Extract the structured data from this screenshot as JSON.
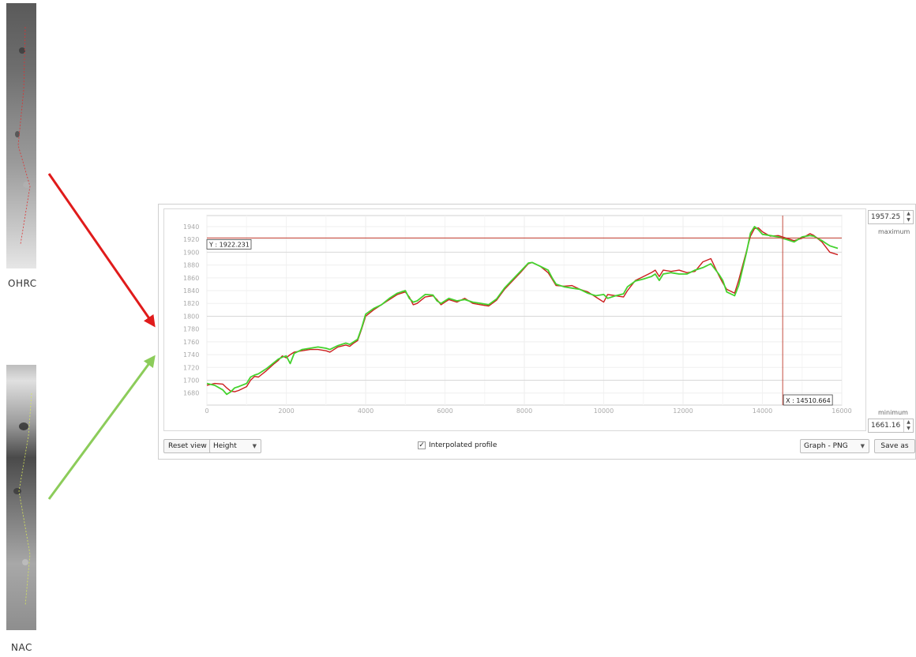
{
  "images": {
    "ohrc_label": "OHRC",
    "nac_label": "NAC"
  },
  "colors": {
    "ohrc": "#cc1e1e",
    "nac": "#44d22e",
    "crosshair": "#c0392b"
  },
  "profile": {
    "max_value": "1957.25",
    "max_label": "maximum",
    "min_value": "1661.16",
    "min_label": "minimum",
    "crosshair_y_label": "Y : 1922.231",
    "crosshair_x_label": "X : 14510.664",
    "crosshair_x": 14510.664,
    "crosshair_y": 1922.231,
    "reset_label": "Reset view",
    "mode_value": "Height",
    "interpolated_label": "Interpolated profile",
    "interpolated_checked": true,
    "export_value": "Graph - PNG",
    "save_label": "Save as"
  },
  "chart_data": {
    "type": "line",
    "xlim": [
      0,
      16000
    ],
    "ylim": [
      1661.16,
      1957.25
    ],
    "x_ticks": [
      "0",
      "2000",
      "4000",
      "6000",
      "8000",
      "10000",
      "12000",
      "14000",
      "16000"
    ],
    "y_ticks": [
      "1680",
      "1700",
      "1720",
      "1740",
      "1760",
      "1780",
      "1800",
      "1820",
      "1840",
      "1860",
      "1880",
      "1900",
      "1920",
      "1940"
    ],
    "grid": true,
    "series": [
      {
        "color": "#cc1e1e",
        "points": [
          [
            0,
            1692
          ],
          [
            200,
            1695
          ],
          [
            400,
            1694
          ],
          [
            500,
            1688
          ],
          [
            600,
            1683
          ],
          [
            700,
            1682
          ],
          [
            800,
            1684
          ],
          [
            1000,
            1690
          ],
          [
            1100,
            1700
          ],
          [
            1200,
            1706
          ],
          [
            1300,
            1705
          ],
          [
            1500,
            1715
          ],
          [
            1700,
            1726
          ],
          [
            1800,
            1731
          ],
          [
            1900,
            1738
          ],
          [
            2000,
            1735
          ],
          [
            2100,
            1740
          ],
          [
            2200,
            1744
          ],
          [
            2400,
            1746
          ],
          [
            2600,
            1748
          ],
          [
            2800,
            1748
          ],
          [
            3000,
            1746
          ],
          [
            3100,
            1744
          ],
          [
            3300,
            1752
          ],
          [
            3500,
            1755
          ],
          [
            3600,
            1753
          ],
          [
            3700,
            1758
          ],
          [
            3800,
            1762
          ],
          [
            3900,
            1780
          ],
          [
            4000,
            1800
          ],
          [
            4200,
            1810
          ],
          [
            4400,
            1818
          ],
          [
            4600,
            1826
          ],
          [
            4800,
            1834
          ],
          [
            5000,
            1838
          ],
          [
            5100,
            1830
          ],
          [
            5200,
            1818
          ],
          [
            5300,
            1820
          ],
          [
            5500,
            1830
          ],
          [
            5700,
            1832
          ],
          [
            5800,
            1826
          ],
          [
            5900,
            1818
          ],
          [
            6000,
            1822
          ],
          [
            6100,
            1826
          ],
          [
            6300,
            1822
          ],
          [
            6500,
            1828
          ],
          [
            6700,
            1820
          ],
          [
            6900,
            1818
          ],
          [
            7100,
            1816
          ],
          [
            7300,
            1825
          ],
          [
            7500,
            1842
          ],
          [
            7700,
            1855
          ],
          [
            7900,
            1868
          ],
          [
            8100,
            1882
          ],
          [
            8200,
            1884
          ],
          [
            8400,
            1878
          ],
          [
            8600,
            1868
          ],
          [
            8700,
            1858
          ],
          [
            8800,
            1848
          ],
          [
            9000,
            1847
          ],
          [
            9200,
            1848
          ],
          [
            9400,
            1842
          ],
          [
            9600,
            1838
          ],
          [
            9800,
            1830
          ],
          [
            10000,
            1822
          ],
          [
            10100,
            1834
          ],
          [
            10300,
            1832
          ],
          [
            10500,
            1830
          ],
          [
            10600,
            1840
          ],
          [
            10800,
            1856
          ],
          [
            11000,
            1862
          ],
          [
            11200,
            1868
          ],
          [
            11300,
            1872
          ],
          [
            11400,
            1862
          ],
          [
            11500,
            1872
          ],
          [
            11700,
            1870
          ],
          [
            11900,
            1872
          ],
          [
            12100,
            1868
          ],
          [
            12300,
            1870
          ],
          [
            12500,
            1885
          ],
          [
            12700,
            1890
          ],
          [
            12900,
            1864
          ],
          [
            13000,
            1852
          ],
          [
            13100,
            1842
          ],
          [
            13300,
            1836
          ],
          [
            13400,
            1856
          ],
          [
            13600,
            1902
          ],
          [
            13700,
            1925
          ],
          [
            13800,
            1937
          ],
          [
            13900,
            1938
          ],
          [
            14000,
            1932
          ],
          [
            14200,
            1925
          ],
          [
            14400,
            1926
          ],
          [
            14600,
            1922
          ],
          [
            14800,
            1918
          ],
          [
            15000,
            1922
          ],
          [
            15200,
            1929
          ],
          [
            15300,
            1926
          ],
          [
            15500,
            1916
          ],
          [
            15600,
            1908
          ],
          [
            15700,
            1900
          ],
          [
            15900,
            1896
          ]
        ]
      },
      {
        "color": "#44d22e",
        "points": [
          [
            0,
            1695
          ],
          [
            200,
            1692
          ],
          [
            400,
            1685
          ],
          [
            500,
            1678
          ],
          [
            600,
            1682
          ],
          [
            700,
            1688
          ],
          [
            800,
            1690
          ],
          [
            1000,
            1695
          ],
          [
            1100,
            1705
          ],
          [
            1200,
            1708
          ],
          [
            1300,
            1710
          ],
          [
            1500,
            1718
          ],
          [
            1700,
            1728
          ],
          [
            1800,
            1733
          ],
          [
            1900,
            1736
          ],
          [
            2000,
            1738
          ],
          [
            2100,
            1726
          ],
          [
            2200,
            1742
          ],
          [
            2400,
            1748
          ],
          [
            2600,
            1750
          ],
          [
            2800,
            1752
          ],
          [
            3000,
            1750
          ],
          [
            3100,
            1748
          ],
          [
            3300,
            1754
          ],
          [
            3500,
            1758
          ],
          [
            3600,
            1756
          ],
          [
            3700,
            1760
          ],
          [
            3800,
            1764
          ],
          [
            3900,
            1782
          ],
          [
            4000,
            1803
          ],
          [
            4200,
            1812
          ],
          [
            4400,
            1818
          ],
          [
            4600,
            1828
          ],
          [
            4800,
            1836
          ],
          [
            5000,
            1840
          ],
          [
            5100,
            1828
          ],
          [
            5200,
            1822
          ],
          [
            5300,
            1824
          ],
          [
            5500,
            1834
          ],
          [
            5700,
            1833
          ],
          [
            5800,
            1824
          ],
          [
            5900,
            1820
          ],
          [
            6000,
            1824
          ],
          [
            6100,
            1828
          ],
          [
            6300,
            1824
          ],
          [
            6500,
            1826
          ],
          [
            6700,
            1822
          ],
          [
            6900,
            1820
          ],
          [
            7100,
            1818
          ],
          [
            7300,
            1827
          ],
          [
            7500,
            1844
          ],
          [
            7700,
            1857
          ],
          [
            7900,
            1870
          ],
          [
            8100,
            1883
          ],
          [
            8200,
            1884
          ],
          [
            8400,
            1878
          ],
          [
            8600,
            1872
          ],
          [
            8700,
            1860
          ],
          [
            8800,
            1850
          ],
          [
            9000,
            1846
          ],
          [
            9200,
            1844
          ],
          [
            9400,
            1842
          ],
          [
            9600,
            1836
          ],
          [
            9800,
            1832
          ],
          [
            10000,
            1834
          ],
          [
            10100,
            1828
          ],
          [
            10300,
            1832
          ],
          [
            10500,
            1835
          ],
          [
            10600,
            1846
          ],
          [
            10800,
            1855
          ],
          [
            11000,
            1858
          ],
          [
            11200,
            1862
          ],
          [
            11300,
            1866
          ],
          [
            11400,
            1856
          ],
          [
            11500,
            1866
          ],
          [
            11700,
            1868
          ],
          [
            11900,
            1866
          ],
          [
            12100,
            1866
          ],
          [
            12300,
            1872
          ],
          [
            12500,
            1876
          ],
          [
            12700,
            1882
          ],
          [
            12900,
            1866
          ],
          [
            13000,
            1856
          ],
          [
            13100,
            1838
          ],
          [
            13300,
            1832
          ],
          [
            13400,
            1848
          ],
          [
            13600,
            1900
          ],
          [
            13700,
            1930
          ],
          [
            13800,
            1940
          ],
          [
            13900,
            1935
          ],
          [
            14000,
            1928
          ],
          [
            14200,
            1926
          ],
          [
            14400,
            1924
          ],
          [
            14600,
            1920
          ],
          [
            14800,
            1916
          ],
          [
            15000,
            1924
          ],
          [
            15200,
            1926
          ],
          [
            15300,
            1925
          ],
          [
            15500,
            1918
          ],
          [
            15600,
            1914
          ],
          [
            15700,
            1910
          ],
          [
            15900,
            1906
          ]
        ]
      }
    ]
  }
}
